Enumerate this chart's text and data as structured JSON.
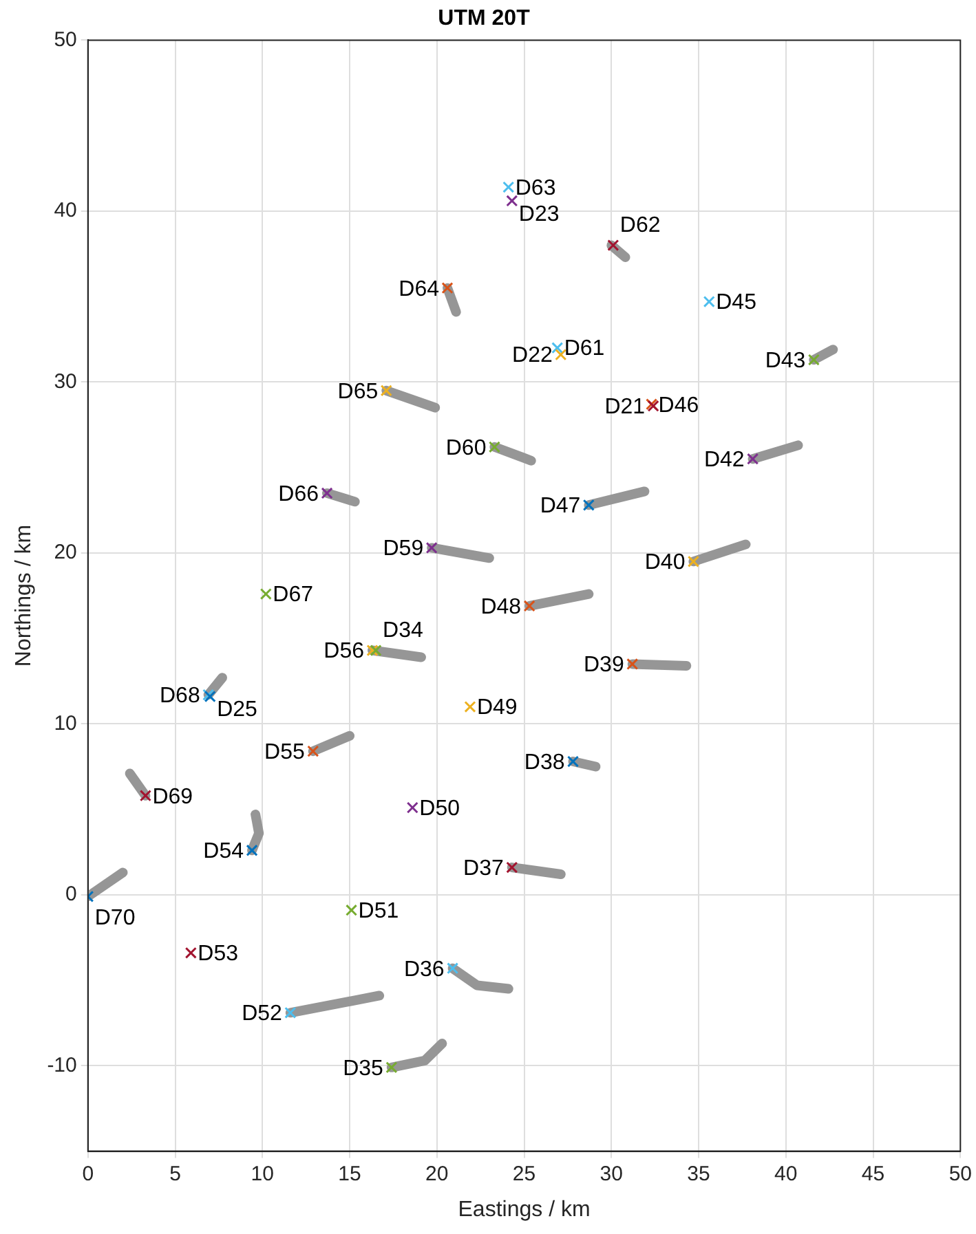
{
  "chart_data": {
    "type": "scatter",
    "title": "UTM 20T",
    "xlabel": "Eastings / km",
    "ylabel": "Northings / km",
    "xlim": [
      0,
      50
    ],
    "xticks": [
      0,
      5,
      10,
      15,
      20,
      25,
      30,
      35,
      40,
      45,
      50
    ],
    "ylim": [
      -15,
      50
    ],
    "yticks": [
      -10,
      0,
      10,
      20,
      30,
      40,
      50
    ],
    "grid": true,
    "series": [
      {
        "type": "line",
        "color": "#969696",
        "x": [
          30.0,
          30.8
        ],
        "values": [
          38.0,
          37.3
        ]
      },
      {
        "type": "line",
        "color": "#969696",
        "x": [
          41.6,
          42.7
        ],
        "values": [
          31.3,
          31.9
        ]
      },
      {
        "type": "line",
        "color": "#969696",
        "x": [
          38.1,
          40.7
        ],
        "values": [
          25.5,
          26.3
        ]
      },
      {
        "type": "line",
        "color": "#969696",
        "x": [
          28.7,
          31.9
        ],
        "values": [
          22.8,
          23.6
        ]
      },
      {
        "type": "line",
        "color": "#969696",
        "x": [
          20.6,
          21.1
        ],
        "values": [
          35.5,
          34.1
        ]
      },
      {
        "type": "line",
        "color": "#969696",
        "x": [
          17.1,
          19.9
        ],
        "values": [
          29.5,
          28.5
        ]
      },
      {
        "type": "line",
        "color": "#969696",
        "x": [
          23.3,
          25.4
        ],
        "values": [
          26.2,
          25.4
        ]
      },
      {
        "type": "line",
        "color": "#969696",
        "x": [
          13.7,
          15.3
        ],
        "values": [
          23.5,
          23.0
        ]
      },
      {
        "type": "line",
        "color": "#969696",
        "x": [
          19.7,
          23.0
        ],
        "values": [
          20.3,
          19.7
        ]
      },
      {
        "type": "line",
        "color": "#969696",
        "x": [
          16.3,
          19.1
        ],
        "values": [
          14.3,
          13.9
        ]
      },
      {
        "type": "line",
        "color": "#969696",
        "x": [
          6.9,
          7.7
        ],
        "values": [
          11.7,
          12.7
        ]
      },
      {
        "type": "line",
        "color": "#969696",
        "x": [
          12.9,
          15.0
        ],
        "values": [
          8.4,
          9.3
        ]
      },
      {
        "type": "line",
        "color": "#969696",
        "x": [
          3.3,
          2.4
        ],
        "values": [
          5.8,
          7.1
        ]
      },
      {
        "type": "line",
        "color": "#969696",
        "x": [
          9.4,
          9.8,
          9.6
        ],
        "values": [
          2.6,
          3.6,
          4.7
        ]
      },
      {
        "type": "line",
        "color": "#969696",
        "x": [
          25.3,
          28.7
        ],
        "values": [
          16.9,
          17.6
        ]
      },
      {
        "type": "line",
        "color": "#969696",
        "x": [
          34.7,
          37.7
        ],
        "values": [
          19.5,
          20.5
        ]
      },
      {
        "type": "line",
        "color": "#969696",
        "x": [
          31.2,
          34.3
        ],
        "values": [
          13.5,
          13.4
        ]
      },
      {
        "type": "line",
        "color": "#969696",
        "x": [
          27.8,
          29.1
        ],
        "values": [
          7.8,
          7.5
        ]
      },
      {
        "type": "line",
        "color": "#969696",
        "x": [
          24.3,
          27.1
        ],
        "values": [
          1.6,
          1.2
        ]
      },
      {
        "type": "line",
        "color": "#969696",
        "x": [
          0.0,
          2.0
        ],
        "values": [
          -0.1,
          1.3
        ]
      },
      {
        "type": "line",
        "color": "#969696",
        "x": [
          20.9,
          22.3,
          24.1
        ],
        "values": [
          -4.3,
          -5.3,
          -5.5
        ]
      },
      {
        "type": "line",
        "color": "#969696",
        "x": [
          11.6,
          16.7
        ],
        "values": [
          -6.9,
          -5.9
        ]
      },
      {
        "type": "line",
        "color": "#969696",
        "x": [
          17.4,
          19.3,
          20.3
        ],
        "values": [
          -10.1,
          -9.7,
          -8.7
        ]
      },
      {
        "marker": "cross",
        "x": [
          24.1,
          24.3,
          30.1,
          35.6,
          26.9,
          27.1,
          41.6,
          32.3,
          32.4,
          38.1,
          28.7,
          20.6,
          17.1,
          23.3,
          13.7,
          19.7,
          10.2,
          16.3,
          16.5,
          6.9,
          7.0,
          21.9,
          12.9,
          3.3,
          18.6,
          9.4,
          25.3,
          34.7,
          31.2,
          27.8,
          24.3,
          0.0,
          15.1,
          5.9,
          20.9,
          11.6,
          17.4
        ],
        "values": [
          41.4,
          40.6,
          38.0,
          34.7,
          32.0,
          31.6,
          31.3,
          28.7,
          28.6,
          25.5,
          22.8,
          35.5,
          29.5,
          26.2,
          23.5,
          20.3,
          17.6,
          14.3,
          14.3,
          11.7,
          11.6,
          11.0,
          8.4,
          5.8,
          5.1,
          2.6,
          16.9,
          19.5,
          13.5,
          7.8,
          1.6,
          -0.1,
          -0.9,
          -3.4,
          -4.3,
          -6.9,
          -10.1
        ],
        "colors": [
          "#4dbeee",
          "#7e2f8e",
          "#a2142f",
          "#4dbeee",
          "#4dbeee",
          "#edb120",
          "#77ac30",
          "#d95319",
          "#a2142f",
          "#7e2f8e",
          "#0072bd",
          "#d95319",
          "#edb120",
          "#77ac30",
          "#7e2f8e",
          "#7e2f8e",
          "#77ac30",
          "#edb120",
          "#77ac30",
          "#4dbeee",
          "#0072bd",
          "#edb120",
          "#d95319",
          "#a2142f",
          "#7e2f8e",
          "#0072bd",
          "#d95319",
          "#edb120",
          "#d95319",
          "#0072bd",
          "#a2142f",
          "#0072bd",
          "#77ac30",
          "#a2142f",
          "#4dbeee",
          "#4dbeee",
          "#77ac30"
        ]
      }
    ],
    "annotations": [
      {
        "text": "D63",
        "x": 24.1,
        "y": 41.4
      },
      {
        "text": "D23",
        "x": 24.3,
        "y": 40.6
      },
      {
        "text": "D62",
        "x": 30.1,
        "y": 38.0
      },
      {
        "text": "D45",
        "x": 35.6,
        "y": 34.7
      },
      {
        "text": "D61",
        "x": 26.9,
        "y": 32.0
      },
      {
        "text": "D22",
        "x": 27.1,
        "y": 31.6
      },
      {
        "text": "D43",
        "x": 41.6,
        "y": 31.3
      },
      {
        "text": "D46",
        "x": 32.3,
        "y": 28.7
      },
      {
        "text": "D21",
        "x": 32.4,
        "y": 28.6
      },
      {
        "text": "D42",
        "x": 38.1,
        "y": 25.5
      },
      {
        "text": "D47",
        "x": 28.7,
        "y": 22.8
      },
      {
        "text": "D64",
        "x": 20.6,
        "y": 35.5
      },
      {
        "text": "D65",
        "x": 17.1,
        "y": 29.5
      },
      {
        "text": "D60",
        "x": 23.3,
        "y": 26.2
      },
      {
        "text": "D66",
        "x": 13.7,
        "y": 23.5
      },
      {
        "text": "D59",
        "x": 19.7,
        "y": 20.3
      },
      {
        "text": "D67",
        "x": 10.2,
        "y": 17.6
      },
      {
        "text": "D56",
        "x": 16.3,
        "y": 14.3
      },
      {
        "text": "D34",
        "x": 16.5,
        "y": 14.3
      },
      {
        "text": "D68",
        "x": 6.9,
        "y": 11.7
      },
      {
        "text": "D25",
        "x": 7.0,
        "y": 11.6
      },
      {
        "text": "D49",
        "x": 21.9,
        "y": 11.0
      },
      {
        "text": "D55",
        "x": 12.9,
        "y": 8.4
      },
      {
        "text": "D69",
        "x": 3.3,
        "y": 5.8
      },
      {
        "text": "D50",
        "x": 18.6,
        "y": 5.1
      },
      {
        "text": "D54",
        "x": 9.4,
        "y": 2.6
      },
      {
        "text": "D48",
        "x": 25.3,
        "y": 16.9
      },
      {
        "text": "D40",
        "x": 34.7,
        "y": 19.5
      },
      {
        "text": "D39",
        "x": 31.2,
        "y": 13.5
      },
      {
        "text": "D38",
        "x": 27.8,
        "y": 7.8
      },
      {
        "text": "D37",
        "x": 24.3,
        "y": 1.6
      },
      {
        "text": "D70",
        "x": 0.0,
        "y": -0.1
      },
      {
        "text": "D51",
        "x": 15.1,
        "y": -0.9
      },
      {
        "text": "D53",
        "x": 5.9,
        "y": -3.4
      },
      {
        "text": "D36",
        "x": 20.9,
        "y": -4.3
      },
      {
        "text": "D52",
        "x": 11.6,
        "y": -6.9
      },
      {
        "text": "D35",
        "x": 17.4,
        "y": -10.1
      }
    ]
  }
}
